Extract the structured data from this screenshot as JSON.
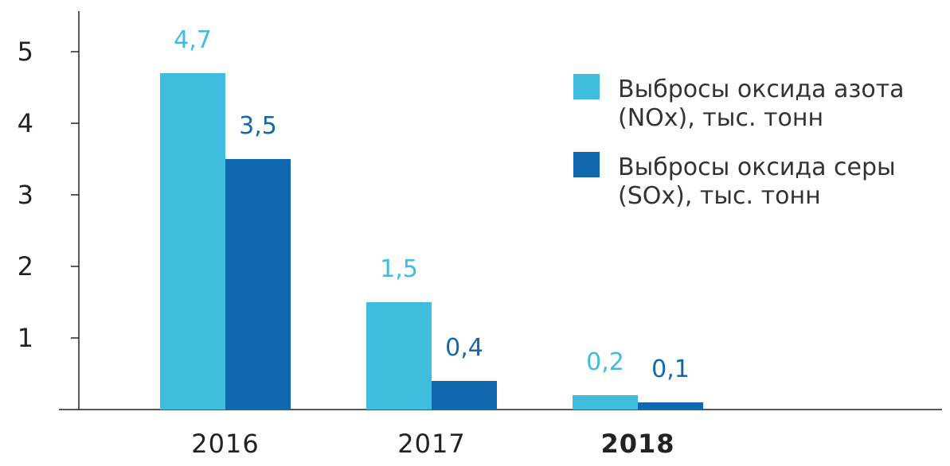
{
  "chart_data": {
    "type": "bar",
    "categories": [
      "2016",
      "2017",
      "2018"
    ],
    "highlighted_category": "2018",
    "series": [
      {
        "name": "Выбросы оксида азота (NOx), тыс. тонн",
        "legend_lines": [
          "Выбросы оксида азота",
          "(NOx), тыс. тонн"
        ],
        "values": [
          4.7,
          1.5,
          0.2
        ],
        "labels": [
          "4,7",
          "1,5",
          "0,2"
        ],
        "color": "#3fbcde"
      },
      {
        "name": "Выбросы оксида серы (SOx), тыс. тонн",
        "legend_lines": [
          "Выбросы оксида серы",
          "(SOx), тыс. тонн"
        ],
        "values": [
          3.5,
          0.4,
          0.1
        ],
        "labels": [
          "3,5",
          "0,4",
          "0,1"
        ],
        "color": "#1268b0"
      }
    ],
    "yticks": [
      "1",
      "2",
      "3",
      "4",
      "5"
    ],
    "ylim": [
      0,
      5.5
    ],
    "grid": false,
    "legend_position": "top-right",
    "title": "",
    "xlabel": "",
    "ylabel": ""
  }
}
